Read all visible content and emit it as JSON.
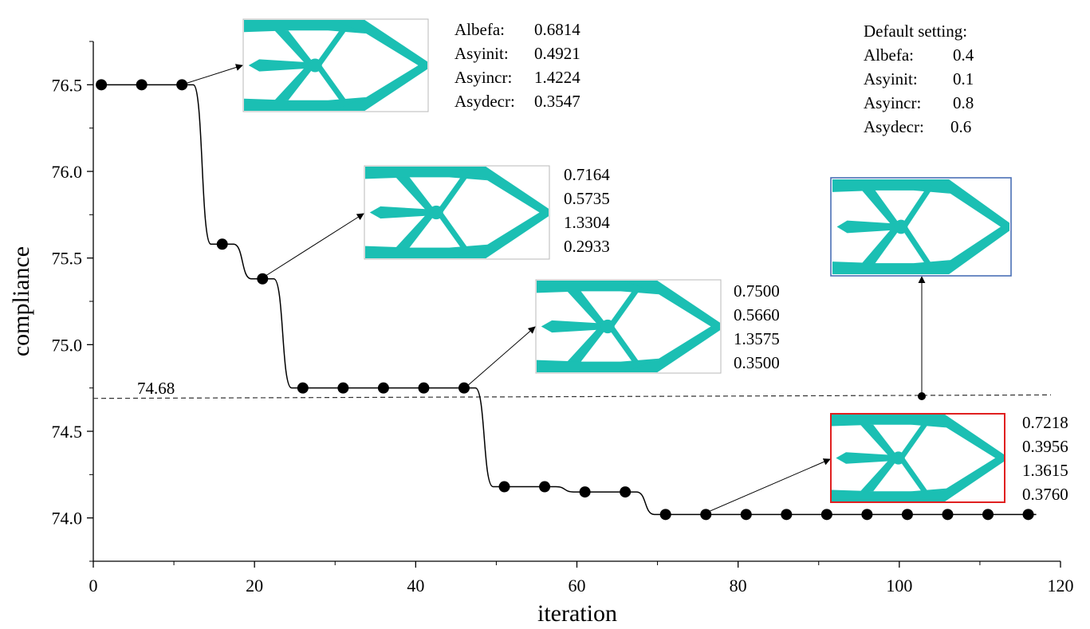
{
  "chart_data": {
    "type": "line",
    "xlabel": "iteration",
    "ylabel": "compliance",
    "xlim": [
      0,
      120
    ],
    "ylim": [
      73.75,
      76.75
    ],
    "xticks": [
      "0",
      "20",
      "40",
      "60",
      "80",
      "100",
      "120"
    ],
    "yticks": [
      "74.0",
      "74.5",
      "75.0",
      "75.5",
      "76.0",
      "76.5"
    ],
    "grid": false,
    "series": [
      {
        "x": [
          1,
          6,
          11,
          16,
          21,
          26,
          31,
          36,
          41,
          46,
          51,
          56,
          61,
          66,
          71,
          76,
          81,
          86,
          91,
          96,
          101,
          106,
          111,
          116
        ],
        "y": [
          76.5,
          76.5,
          76.5,
          75.58,
          75.38,
          74.75,
          74.75,
          74.75,
          74.75,
          74.75,
          74.18,
          74.18,
          74.15,
          74.15,
          74.02,
          74.02,
          74.02,
          74.02,
          74.02,
          74.02,
          74.02,
          74.02,
          74.02,
          74.02
        ]
      }
    ],
    "reference_line": {
      "label": "74.68",
      "y_start": 74.69,
      "y_end": 74.71,
      "style": "dashed"
    },
    "annotations": [
      {
        "lines": [
          {
            "label": "Albefa:",
            "value": "0.6814"
          },
          {
            "label": "Asyinit:",
            "value": "0.4921"
          },
          {
            "label": "Asyincr:",
            "value": "1.4224"
          },
          {
            "label": "Asydecr:",
            "value": "0.3547"
          }
        ]
      },
      {
        "lines": [
          {
            "value": "0.7164"
          },
          {
            "value": "0.5735"
          },
          {
            "value": "1.3304"
          },
          {
            "value": "0.2933"
          }
        ]
      },
      {
        "lines": [
          {
            "value": "0.7500"
          },
          {
            "value": "0.5660"
          },
          {
            "value": "1.3575"
          },
          {
            "value": "0.3500"
          }
        ]
      },
      {
        "lines": [
          {
            "value": "0.7218"
          },
          {
            "value": "0.3956"
          },
          {
            "value": "1.3615"
          },
          {
            "value": "0.3760"
          }
        ]
      }
    ],
    "default_setting": {
      "title": "Default setting:",
      "lines": [
        {
          "label": "Albefa:",
          "value": "0.4"
        },
        {
          "label": "Asyinit:",
          "value": "0.1"
        },
        {
          "label": "Asyincr:",
          "value": "0.8"
        },
        {
          "label": "Asydecr:",
          "value": "0.6"
        }
      ]
    },
    "colors": {
      "structure": "#1bbfb3",
      "highlight_box": "#e02020",
      "default_box": "#4a6fb5",
      "line": "#000000"
    }
  }
}
